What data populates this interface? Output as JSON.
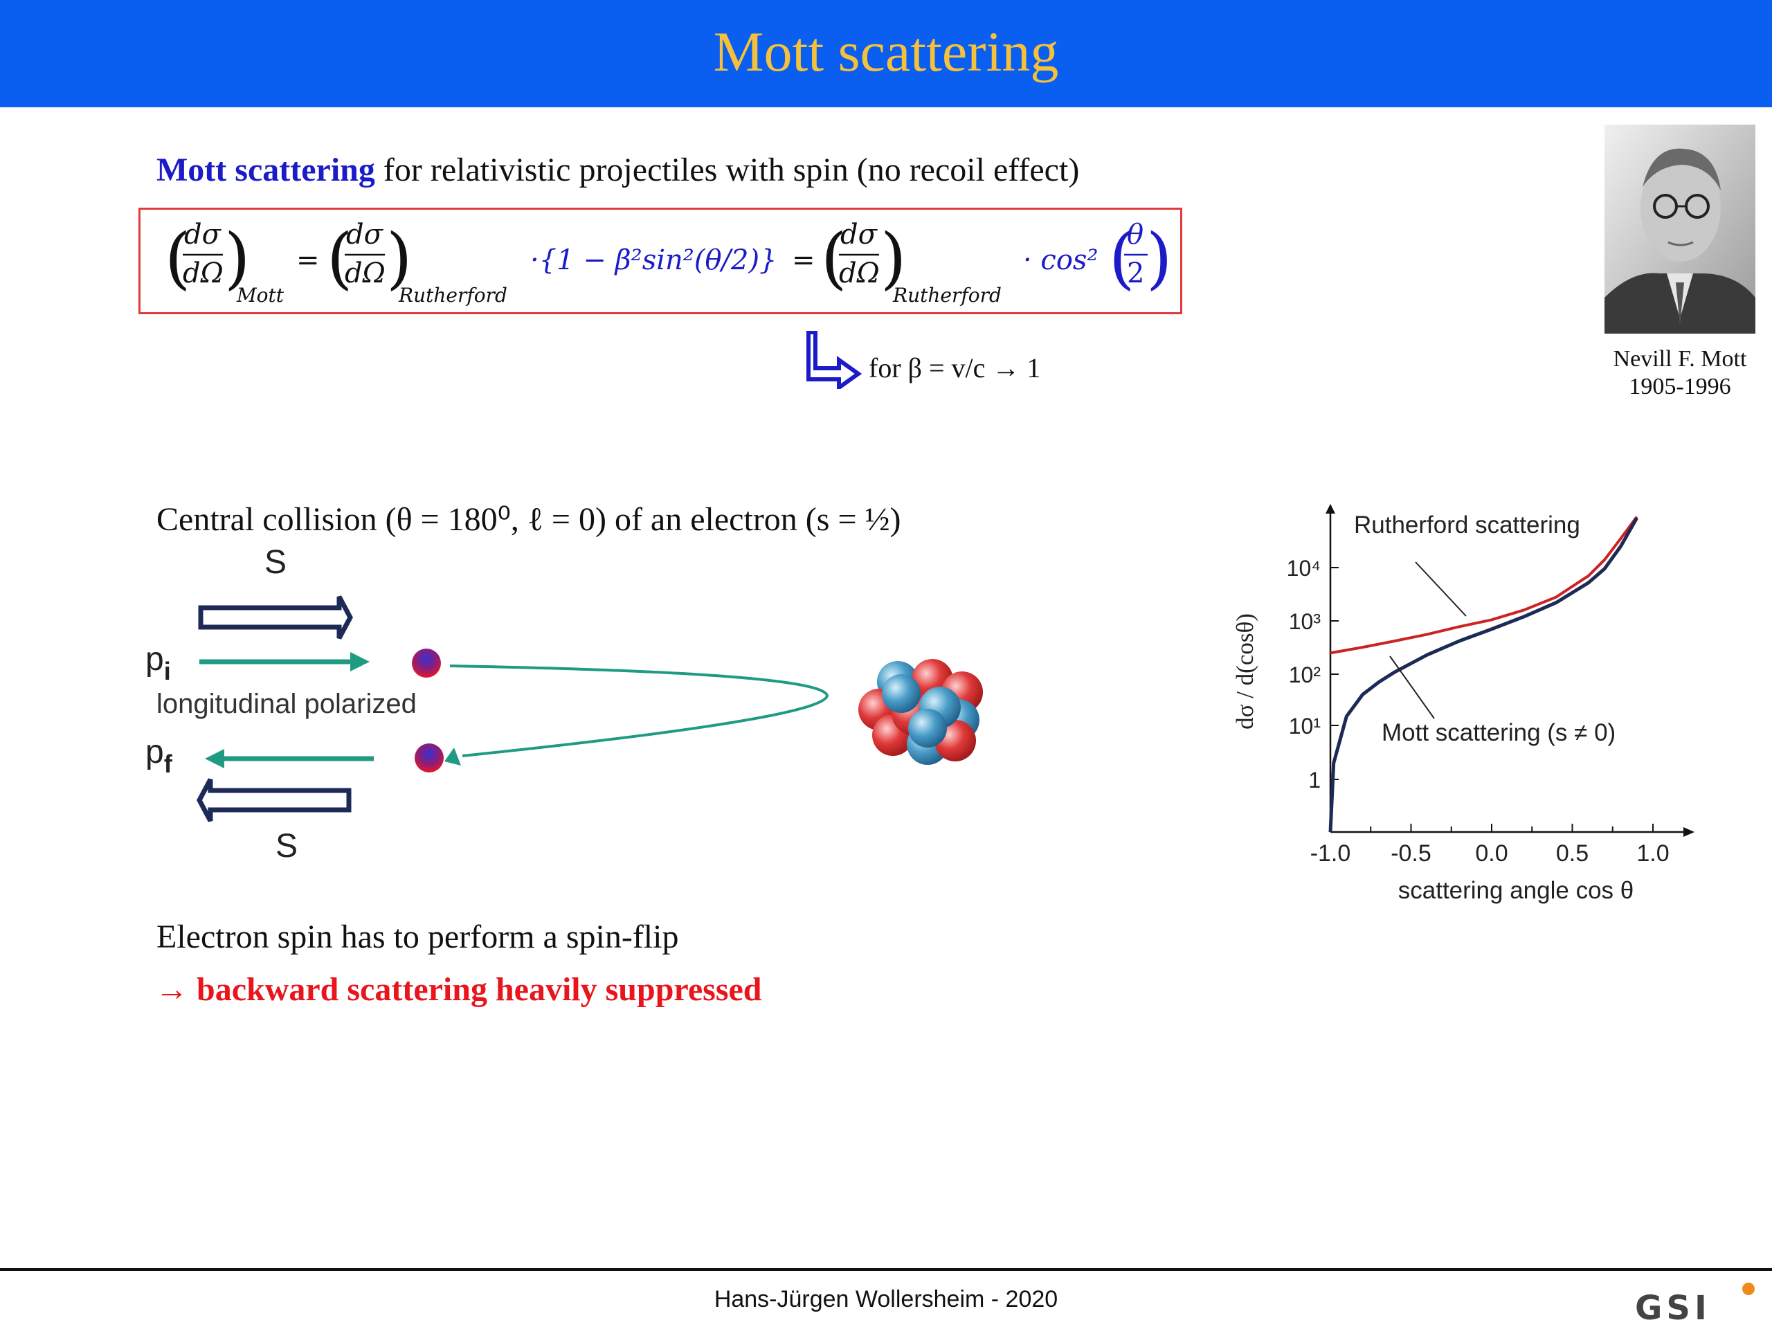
{
  "slide": {
    "title": "Mott scattering",
    "intro_highlight": "Mott scattering",
    "intro_rest": " for relativistic projectiles with spin (no recoil effect)",
    "formula": {
      "lhs_sub": "Mott",
      "rutherford_sub": "Rutherford",
      "factor1": "·{1 − β²sin²(θ/2)}",
      "factor2": "· cos²",
      "num": "dσ",
      "den": "dΩ",
      "half_num": "θ",
      "half_den": "2",
      "eq": "="
    },
    "limit_note": "for β = v/c → 1",
    "portrait_caption_name": "Nevill F. Mott",
    "portrait_caption_years": "1905-1996",
    "central_collision": "Central collision (θ = 180⁰, ℓ = 0) of an electron (s = ½)",
    "diagram": {
      "spin_top": "S",
      "spin_bottom": "S",
      "p_initial": "p",
      "p_initial_sub": "i",
      "p_final": "p",
      "p_final_sub": "f",
      "polarization": "longitudinal polarized"
    },
    "spin_flip": "Electron spin has to perform a spin-flip",
    "suppressed": "→ backward scattering heavily suppressed",
    "footer": "Hans-Jürgen Wollersheim  - 2020",
    "logo_text": "GSI",
    "colors": {
      "header": "#0a5ef0",
      "title": "#f5c13a",
      "highlight": "#1b1bc8",
      "red": "#e8161c",
      "teal": "#1f9b82"
    }
  },
  "chart_data": {
    "type": "line",
    "xlabel": "scattering angle cos θ",
    "ylabel": "dσ / d(cosθ)",
    "xlim": [
      -1.0,
      1.0
    ],
    "yscale": "log",
    "x_ticks": [
      "-1.0",
      "-0.5",
      "0.0",
      "0.5",
      "1.0"
    ],
    "y_ticks": [
      "1",
      "10¹",
      "10²",
      "10³",
      "10⁴"
    ],
    "series": [
      {
        "name": "Rutherford scattering",
        "color": "#cc2222",
        "x": [
          -1.0,
          -0.8,
          -0.6,
          -0.4,
          -0.2,
          0.0,
          0.2,
          0.4,
          0.6,
          0.7,
          0.8,
          0.9
        ],
        "y": [
          250,
          320,
          420,
          560,
          780,
          1050,
          1600,
          2800,
          7000,
          14000,
          35000,
          90000
        ]
      },
      {
        "name": "Mott scattering (s ≠ 0)",
        "color": "#1c2a55",
        "x": [
          -1.0,
          -0.98,
          -0.9,
          -0.8,
          -0.7,
          -0.6,
          -0.4,
          -0.2,
          0.0,
          0.2,
          0.4,
          0.6,
          0.7,
          0.8,
          0.9
        ],
        "y": [
          0.05,
          2,
          15,
          40,
          70,
          110,
          230,
          420,
          700,
          1200,
          2200,
          5200,
          9500,
          25000,
          85000
        ]
      }
    ]
  }
}
